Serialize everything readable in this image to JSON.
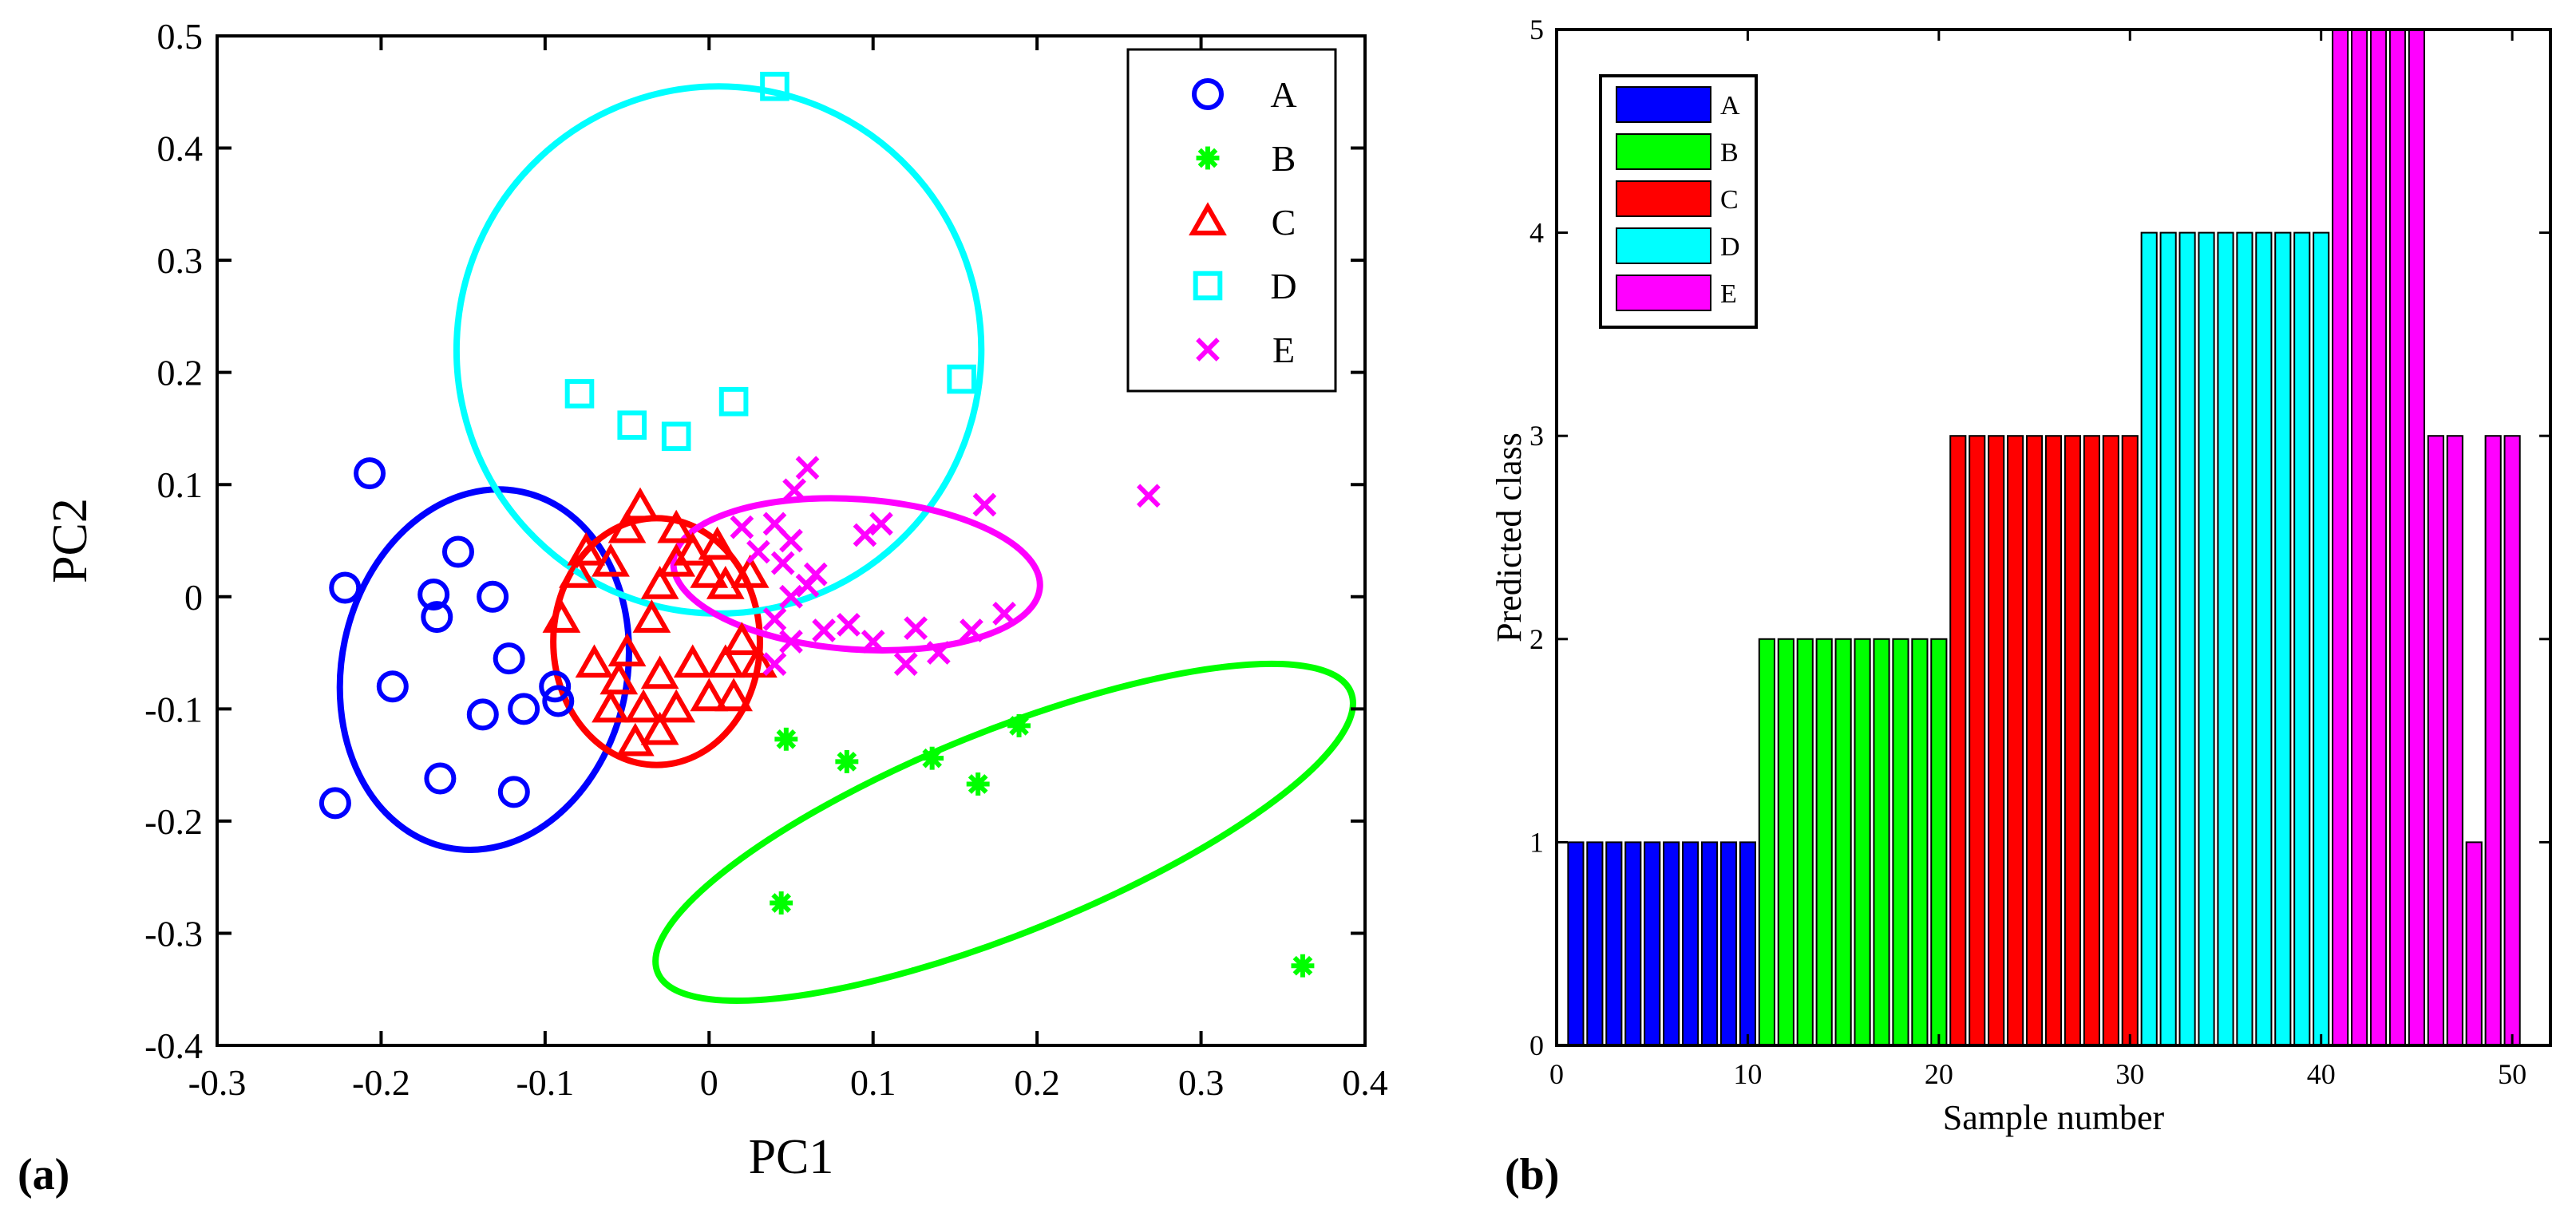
{
  "chart_data": [
    {
      "panel_label": "(a)",
      "type": "scatter",
      "xlabel": "PC1",
      "ylabel": "PC2",
      "xlim": [
        -0.3,
        0.4
      ],
      "ylim": [
        -0.4,
        0.5
      ],
      "xticks": [
        "-0.3",
        "-0.2",
        "-0.1",
        "0",
        "0.1",
        "0.2",
        "0.3",
        "0.4"
      ],
      "yticks": [
        "-0.4",
        "-0.3",
        "-0.2",
        "-0.1",
        "0",
        "0.1",
        "0.2",
        "0.3",
        "0.4",
        "0.5"
      ],
      "legend_position": "top-right",
      "series": [
        {
          "name": "A",
          "marker": "circle",
          "color": "#0000ff",
          "points": [
            [
              -0.207,
              0.11
            ],
            [
              -0.222,
              0.008
            ],
            [
              -0.168,
              0.002
            ],
            [
              -0.166,
              -0.018
            ],
            [
              -0.153,
              0.04
            ],
            [
              -0.132,
              0.0
            ],
            [
              -0.193,
              -0.08
            ],
            [
              -0.138,
              -0.105
            ],
            [
              -0.122,
              -0.055
            ],
            [
              -0.113,
              -0.1
            ],
            [
              -0.094,
              -0.08
            ],
            [
              -0.092,
              -0.093
            ],
            [
              -0.164,
              -0.162
            ],
            [
              -0.119,
              -0.174
            ],
            [
              -0.228,
              -0.184
            ]
          ],
          "ellipse": {
            "cx": -0.137,
            "cy": -0.065,
            "rx": 0.087,
            "ry": 0.162,
            "angle_deg": -12
          }
        },
        {
          "name": "B",
          "marker": "star",
          "color": "#00ff00",
          "points": [
            [
              0.047,
              -0.127
            ],
            [
              0.084,
              -0.147
            ],
            [
              0.136,
              -0.144
            ],
            [
              0.164,
              -0.167
            ],
            [
              0.189,
              -0.115
            ],
            [
              0.044,
              -0.273
            ],
            [
              0.362,
              -0.329
            ]
          ],
          "ellipse": {
            "cx": 0.18,
            "cy": -0.21,
            "rx": 0.228,
            "ry": 0.09,
            "angle_deg": 22
          }
        },
        {
          "name": "C",
          "marker": "triangle",
          "color": "#ff0000",
          "points": [
            [
              -0.05,
              0.06
            ],
            [
              -0.042,
              0.08
            ],
            [
              -0.02,
              0.03
            ],
            [
              -0.01,
              0.04
            ],
            [
              0.0,
              0.02
            ],
            [
              0.01,
              0.01
            ],
            [
              -0.06,
              0.03
            ],
            [
              -0.03,
              0.01
            ],
            [
              -0.08,
              0.02
            ],
            [
              -0.09,
              -0.02
            ],
            [
              -0.07,
              -0.06
            ],
            [
              -0.05,
              -0.05
            ],
            [
              -0.03,
              -0.07
            ],
            [
              -0.01,
              -0.06
            ],
            [
              0.01,
              -0.06
            ],
            [
              0.02,
              -0.04
            ],
            [
              0.03,
              -0.06
            ],
            [
              -0.04,
              -0.1
            ],
            [
              -0.03,
              -0.12
            ],
            [
              -0.02,
              -0.1
            ],
            [
              0.0,
              -0.09
            ],
            [
              0.015,
              -0.09
            ],
            [
              -0.06,
              -0.1
            ],
            [
              -0.045,
              -0.13
            ],
            [
              -0.02,
              0.06
            ],
            [
              0.005,
              0.045
            ],
            [
              0.025,
              0.02
            ],
            [
              -0.075,
              0.04
            ],
            [
              -0.055,
              -0.075
            ],
            [
              -0.035,
              -0.02
            ]
          ],
          "ellipse": {
            "cx": -0.032,
            "cy": -0.04,
            "rx": 0.063,
            "ry": 0.11,
            "angle_deg": 0
          }
        },
        {
          "name": "D",
          "marker": "square",
          "color": "#00ffff",
          "points": [
            [
              0.04,
              0.455
            ],
            [
              -0.079,
              0.181
            ],
            [
              -0.047,
              0.153
            ],
            [
              -0.02,
              0.143
            ],
            [
              0.015,
              0.174
            ],
            [
              0.154,
              0.194
            ]
          ],
          "ellipse": {
            "cx": 0.006,
            "cy": 0.22,
            "rx": 0.16,
            "ry": 0.235,
            "angle_deg": -2
          }
        },
        {
          "name": "E",
          "marker": "x",
          "color": "#ff00ff",
          "points": [
            [
              0.06,
              0.115
            ],
            [
              0.052,
              0.095
            ],
            [
              0.268,
              0.09
            ],
            [
              0.168,
              0.082
            ],
            [
              0.02,
              0.062
            ],
            [
              0.04,
              0.065
            ],
            [
              0.05,
              0.05
            ],
            [
              0.095,
              0.055
            ],
            [
              0.105,
              0.065
            ],
            [
              0.03,
              0.04
            ],
            [
              0.045,
              0.03
            ],
            [
              0.06,
              0.01
            ],
            [
              0.065,
              0.02
            ],
            [
              0.04,
              -0.02
            ],
            [
              0.05,
              -0.04
            ],
            [
              0.07,
              -0.03
            ],
            [
              0.1,
              -0.04
            ],
            [
              0.12,
              -0.06
            ],
            [
              0.14,
              -0.05
            ],
            [
              0.16,
              -0.03
            ],
            [
              0.18,
              -0.015
            ],
            [
              0.126,
              -0.028
            ],
            [
              0.085,
              -0.025
            ],
            [
              0.04,
              -0.06
            ],
            [
              0.05,
              0.0
            ]
          ],
          "ellipse": {
            "cx": 0.09,
            "cy": 0.02,
            "rx": 0.112,
            "ry": 0.067,
            "angle_deg": -4
          }
        }
      ]
    },
    {
      "panel_label": "(b)",
      "type": "bar",
      "xlabel": "Sample number",
      "ylabel": "Predicted class",
      "xlim": [
        0,
        52
      ],
      "ylim": [
        0,
        5
      ],
      "xticks": [
        "0",
        "10",
        "20",
        "30",
        "40",
        "50"
      ],
      "yticks": [
        "0",
        "1",
        "2",
        "3",
        "4",
        "5"
      ],
      "legend_position": "top-left",
      "legend": [
        {
          "name": "A",
          "color": "#0000ff"
        },
        {
          "name": "B",
          "color": "#00ff00"
        },
        {
          "name": "C",
          "color": "#ff0000"
        },
        {
          "name": "D",
          "color": "#00ffff"
        },
        {
          "name": "E",
          "color": "#ff00ff"
        }
      ],
      "x": [
        1,
        2,
        3,
        4,
        5,
        6,
        7,
        8,
        9,
        10,
        11,
        12,
        13,
        14,
        15,
        16,
        17,
        18,
        19,
        20,
        21,
        22,
        23,
        24,
        25,
        26,
        27,
        28,
        29,
        30,
        31,
        32,
        33,
        34,
        35,
        36,
        37,
        38,
        39,
        40,
        41,
        42,
        43,
        44,
        45,
        46,
        47,
        48,
        49,
        50
      ],
      "values": [
        1,
        1,
        1,
        1,
        1,
        1,
        1,
        1,
        1,
        1,
        2,
        2,
        2,
        2,
        2,
        2,
        2,
        2,
        2,
        2,
        3,
        3,
        3,
        3,
        3,
        3,
        3,
        3,
        3,
        3,
        4,
        4,
        4,
        4,
        4,
        4,
        4,
        4,
        4,
        4,
        5,
        5,
        5,
        5,
        5,
        3,
        3,
        1,
        3,
        3
      ],
      "true_class": [
        "A",
        "A",
        "A",
        "A",
        "A",
        "A",
        "A",
        "A",
        "A",
        "A",
        "B",
        "B",
        "B",
        "B",
        "B",
        "B",
        "B",
        "B",
        "B",
        "B",
        "C",
        "C",
        "C",
        "C",
        "C",
        "C",
        "C",
        "C",
        "C",
        "C",
        "D",
        "D",
        "D",
        "D",
        "D",
        "D",
        "D",
        "D",
        "D",
        "D",
        "E",
        "E",
        "E",
        "E",
        "E",
        "E",
        "E",
        "E",
        "E",
        "E"
      ]
    }
  ]
}
